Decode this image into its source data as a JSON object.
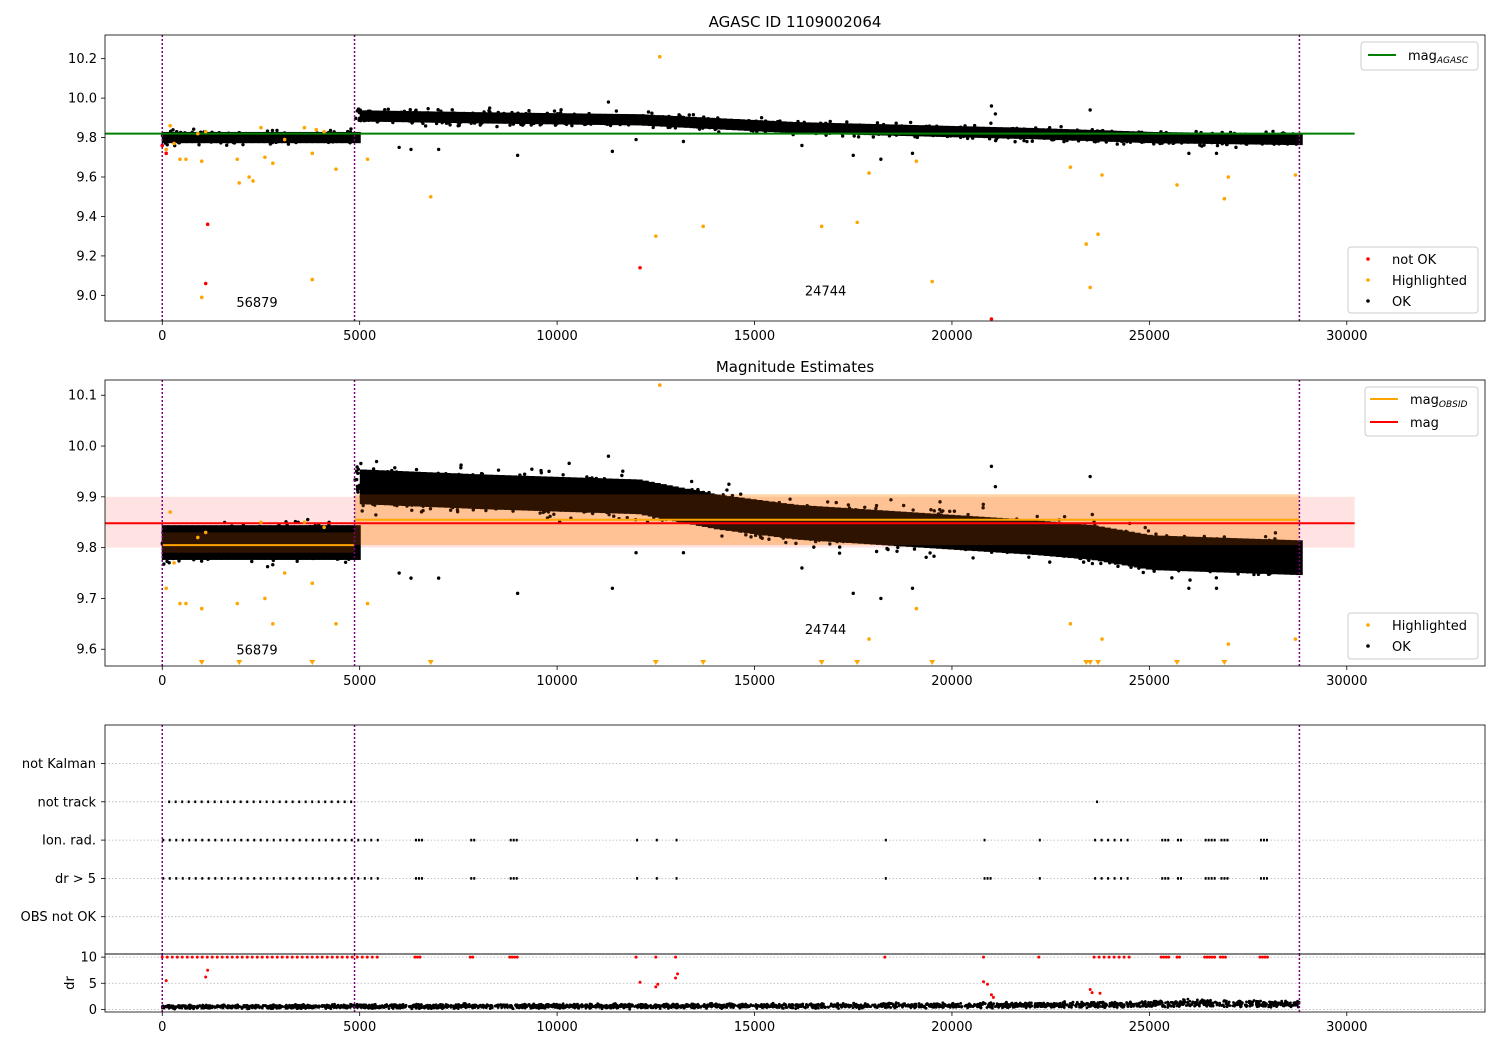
{
  "chart_data": [
    {
      "type": "scatter",
      "title": "AGASC ID 1109002064",
      "xlim": [
        -1450,
        33500
      ],
      "ylim": [
        8.87,
        10.32
      ],
      "xticks": [
        0,
        5000,
        10000,
        15000,
        20000,
        25000,
        30000
      ],
      "yticks": [
        9.0,
        9.2,
        9.4,
        9.6,
        9.8,
        10.0,
        10.2
      ],
      "ytick_labels": [
        "9.0",
        "9.2",
        "9.4",
        "9.6",
        "9.8",
        "10.0",
        "10.2"
      ],
      "observation_boundaries": [
        0,
        4870,
        28800
      ],
      "observation_labels": [
        {
          "text": "56879",
          "x": 2400,
          "y": 8.94
        },
        {
          "text": "24744",
          "x": 16800,
          "y": 9.0
        }
      ],
      "lines": [
        {
          "name": "mag_AGASC",
          "y": 9.82,
          "x": [
            -1450,
            30200
          ],
          "color": "#008000"
        }
      ],
      "ok_trend": [
        [
          0,
          9.8
        ],
        [
          4870,
          9.8
        ],
        [
          4880,
          9.91
        ],
        [
          8000,
          9.9
        ],
        [
          12000,
          9.89
        ],
        [
          14000,
          9.87
        ],
        [
          16000,
          9.85
        ],
        [
          18000,
          9.84
        ],
        [
          20000,
          9.83
        ],
        [
          22000,
          9.82
        ],
        [
          23500,
          9.81
        ],
        [
          25000,
          9.8
        ],
        [
          28800,
          9.79
        ]
      ],
      "ok_scatter": 0.015,
      "ok_outliers": [
        [
          6000,
          9.75
        ],
        [
          6300,
          9.74
        ],
        [
          7000,
          9.74
        ],
        [
          9000,
          9.71
        ],
        [
          11300,
          9.98
        ],
        [
          11400,
          9.73
        ],
        [
          12000,
          9.79
        ],
        [
          13200,
          9.78
        ],
        [
          16200,
          9.76
        ],
        [
          17500,
          9.71
        ],
        [
          18200,
          9.69
        ],
        [
          19000,
          9.72
        ],
        [
          21000,
          9.96
        ],
        [
          21100,
          9.92
        ],
        [
          23500,
          9.94
        ],
        [
          26000,
          9.72
        ],
        [
          26700,
          9.72
        ]
      ],
      "highlighted": [
        [
          100,
          9.74
        ],
        [
          200,
          9.86
        ],
        [
          300,
          9.77
        ],
        [
          450,
          9.69
        ],
        [
          600,
          9.69
        ],
        [
          900,
          9.82
        ],
        [
          1000,
          9.68
        ],
        [
          1100,
          9.83
        ],
        [
          1900,
          9.69
        ],
        [
          1950,
          9.57
        ],
        [
          2200,
          9.6
        ],
        [
          2300,
          9.58
        ],
        [
          2500,
          9.85
        ],
        [
          2600,
          9.7
        ],
        [
          2800,
          9.67
        ],
        [
          3100,
          9.79
        ],
        [
          3600,
          9.85
        ],
        [
          3800,
          9.72
        ],
        [
          3900,
          9.84
        ],
        [
          4100,
          9.83
        ],
        [
          4400,
          9.64
        ],
        [
          1000,
          8.99
        ],
        [
          3800,
          9.08
        ],
        [
          5200,
          9.69
        ],
        [
          6800,
          9.5
        ],
        [
          12600,
          10.21
        ],
        [
          12500,
          9.3
        ],
        [
          13700,
          9.35
        ],
        [
          16700,
          9.35
        ],
        [
          17600,
          9.37
        ],
        [
          17900,
          9.62
        ],
        [
          19100,
          9.68
        ],
        [
          19500,
          9.07
        ],
        [
          23000,
          9.65
        ],
        [
          23400,
          9.26
        ],
        [
          23500,
          9.04
        ],
        [
          23700,
          9.31
        ],
        [
          23800,
          9.61
        ],
        [
          25700,
          9.56
        ],
        [
          26900,
          9.49
        ],
        [
          27000,
          9.6
        ],
        [
          28700,
          9.61
        ]
      ],
      "not_ok": [
        [
          0,
          9.76
        ],
        [
          100,
          9.72
        ],
        [
          1150,
          9.36
        ],
        [
          1100,
          9.06
        ],
        [
          12100,
          9.14
        ],
        [
          21000,
          8.88
        ]
      ],
      "legend_lines": [
        {
          "label": "mag",
          "sub": "AGASC",
          "color": "#008000"
        }
      ],
      "legend_points": [
        {
          "label": "not OK",
          "color": "#ff0000"
        },
        {
          "label": "Highlighted",
          "color": "#ffa500"
        },
        {
          "label": "OK",
          "color": "#000000"
        }
      ]
    },
    {
      "type": "scatter",
      "title": "Magnitude Estimates",
      "xlim": [
        -1450,
        33500
      ],
      "ylim": [
        9.567,
        10.13
      ],
      "xticks": [
        0,
        5000,
        10000,
        15000,
        20000,
        25000,
        30000
      ],
      "yticks": [
        9.6,
        9.7,
        9.8,
        9.9,
        10.0,
        10.1
      ],
      "ytick_labels": [
        "9.6",
        "9.7",
        "9.8",
        "9.9",
        "10.0",
        "10.1"
      ],
      "observation_boundaries": [
        0,
        4870,
        28800
      ],
      "observation_labels": [
        {
          "text": "56879",
          "x": 2400,
          "y": 9.59
        },
        {
          "text": "24744",
          "x": 16800,
          "y": 9.63
        }
      ],
      "mag_band": {
        "x": [
          -1450,
          30200
        ],
        "y": [
          9.8,
          9.9
        ],
        "color": "#ff0000",
        "opacity": 0.11
      },
      "mag_line": {
        "y": 9.848,
        "x": [
          -1450,
          30200
        ],
        "color": "#ff0000"
      },
      "obsid_segments": [
        {
          "x": [
            0,
            4870
          ],
          "y": 9.805,
          "band": [
            9.79,
            9.83
          ],
          "color": "#ffa500"
        },
        {
          "x": [
            4870,
            28800
          ],
          "y": 9.855,
          "band": [
            9.805,
            9.905
          ],
          "color": "#ffa500"
        }
      ],
      "ok_trend": [
        [
          0,
          9.81
        ],
        [
          4870,
          9.81
        ],
        [
          4880,
          9.92
        ],
        [
          8000,
          9.91
        ],
        [
          12000,
          9.9
        ],
        [
          14000,
          9.87
        ],
        [
          16000,
          9.85
        ],
        [
          18000,
          9.84
        ],
        [
          20000,
          9.83
        ],
        [
          22000,
          9.82
        ],
        [
          23500,
          9.81
        ],
        [
          25000,
          9.79
        ],
        [
          28800,
          9.78
        ]
      ],
      "ok_scatter": 0.018,
      "ok_outliers": [
        [
          6000,
          9.75
        ],
        [
          6300,
          9.74
        ],
        [
          7000,
          9.74
        ],
        [
          9000,
          9.71
        ],
        [
          11300,
          9.98
        ],
        [
          11400,
          9.72
        ],
        [
          12000,
          9.79
        ],
        [
          13200,
          9.79
        ],
        [
          16200,
          9.76
        ],
        [
          17500,
          9.71
        ],
        [
          18200,
          9.7
        ],
        [
          19000,
          9.72
        ],
        [
          21000,
          9.96
        ],
        [
          21100,
          9.92
        ],
        [
          23500,
          9.94
        ],
        [
          26000,
          9.72
        ],
        [
          26700,
          9.72
        ]
      ],
      "highlighted": [
        [
          100,
          9.72
        ],
        [
          200,
          9.87
        ],
        [
          300,
          9.77
        ],
        [
          450,
          9.69
        ],
        [
          600,
          9.69
        ],
        [
          900,
          9.82
        ],
        [
          1000,
          9.68
        ],
        [
          1100,
          9.83
        ],
        [
          1900,
          9.69
        ],
        [
          2500,
          9.85
        ],
        [
          2600,
          9.7
        ],
        [
          2800,
          9.65
        ],
        [
          3100,
          9.75
        ],
        [
          3600,
          9.85
        ],
        [
          3800,
          9.73
        ],
        [
          4100,
          9.84
        ],
        [
          4400,
          9.65
        ],
        [
          5200,
          9.69
        ],
        [
          12600,
          10.12
        ],
        [
          17900,
          9.62
        ],
        [
          19100,
          9.68
        ],
        [
          23000,
          9.65
        ],
        [
          23800,
          9.62
        ],
        [
          27000,
          9.61
        ],
        [
          28700,
          9.62
        ]
      ],
      "clipped_low": [
        1000,
        1950,
        3800,
        6800,
        12500,
        13700,
        16700,
        17600,
        19500,
        23400,
        23500,
        23700,
        25700,
        26900
      ],
      "legend_lines": [
        {
          "label": "mag",
          "sub": "OBSID",
          "color": "#ffa500"
        },
        {
          "label": "mag",
          "sub": "",
          "color": "#ff0000"
        }
      ],
      "legend_points": [
        {
          "label": "Highlighted",
          "color": "#ffa500"
        },
        {
          "label": "OK",
          "color": "#000000"
        }
      ]
    },
    {
      "type": "scatter",
      "xlim": [
        -1450,
        33500
      ],
      "observation_boundaries": [
        0,
        4870,
        28800
      ],
      "flag_labels": [
        "not Kalman",
        "not track",
        "Ion. rad.",
        "dr > 5",
        "OBS not OK"
      ],
      "flag_intervals": {
        "not track": [
          [
            150,
            4900
          ],
          [
            23650,
            23700
          ]
        ],
        "Ion. rad.": [
          [
            0,
            5500
          ],
          [
            6400,
            6550
          ],
          [
            7800,
            7900
          ],
          [
            8800,
            9000
          ],
          [
            12000,
            12050
          ],
          [
            12500,
            12550
          ],
          [
            13000,
            13050
          ],
          [
            18300,
            18330
          ],
          [
            20800,
            20850
          ],
          [
            22200,
            22230
          ],
          [
            23600,
            24500
          ],
          [
            25300,
            25500
          ],
          [
            25700,
            25800
          ],
          [
            26400,
            26700
          ],
          [
            26800,
            26950
          ],
          [
            27800,
            28000
          ]
        ],
        "dr > 5": [
          [
            0,
            5500
          ],
          [
            6400,
            6550
          ],
          [
            7800,
            7900
          ],
          [
            8800,
            9000
          ],
          [
            12000,
            12050
          ],
          [
            12500,
            12550
          ],
          [
            13000,
            13050
          ],
          [
            18300,
            18330
          ],
          [
            20800,
            21000
          ],
          [
            22200,
            22230
          ],
          [
            23600,
            24500
          ],
          [
            25300,
            25500
          ],
          [
            25700,
            25800
          ],
          [
            26400,
            26700
          ],
          [
            26800,
            26950
          ],
          [
            27800,
            28000
          ]
        ]
      }
    },
    {
      "type": "scatter",
      "xlim": [
        -1450,
        33500
      ],
      "ylim": [
        -0.5,
        10.6
      ],
      "ylabel": "dr",
      "yticks": [
        0,
        5,
        10
      ],
      "ytick_labels": [
        "0",
        "5",
        "10"
      ],
      "xticks": [
        0,
        5000,
        10000,
        15000,
        20000,
        25000,
        30000
      ],
      "observation_boundaries": [
        0,
        4870,
        28800
      ],
      "dr_baseline": [
        [
          0,
          0.5
        ],
        [
          5000,
          0.6
        ],
        [
          15000,
          0.7
        ],
        [
          20000,
          0.8
        ],
        [
          25000,
          1.0
        ],
        [
          26000,
          1.3
        ],
        [
          28800,
          1.0
        ]
      ],
      "dr_clipped": [
        [
          0,
          5500
        ],
        [
          6400,
          6550
        ],
        [
          7800,
          7900
        ],
        [
          8800,
          9000
        ],
        [
          12000,
          12050
        ],
        [
          12500,
          12550
        ],
        [
          13000,
          13050
        ],
        [
          18300,
          18330
        ],
        [
          20800,
          20850
        ],
        [
          22200,
          22230
        ],
        [
          23600,
          24500
        ],
        [
          25300,
          25500
        ],
        [
          25700,
          25800
        ],
        [
          26400,
          26700
        ],
        [
          26800,
          26950
        ],
        [
          27800,
          28000
        ]
      ],
      "dr_not_ok": [
        [
          100,
          5.5
        ],
        [
          1100,
          6.2
        ],
        [
          1150,
          7.5
        ],
        [
          12100,
          5.2
        ],
        [
          12500,
          4.3
        ],
        [
          12550,
          4.8
        ],
        [
          13000,
          6.0
        ],
        [
          13050,
          6.8
        ],
        [
          20800,
          5.3
        ],
        [
          20900,
          4.8
        ],
        [
          21000,
          2.8
        ],
        [
          21050,
          2.3
        ],
        [
          23500,
          3.8
        ],
        [
          23550,
          3.2
        ],
        [
          23750,
          3.1
        ]
      ]
    }
  ]
}
